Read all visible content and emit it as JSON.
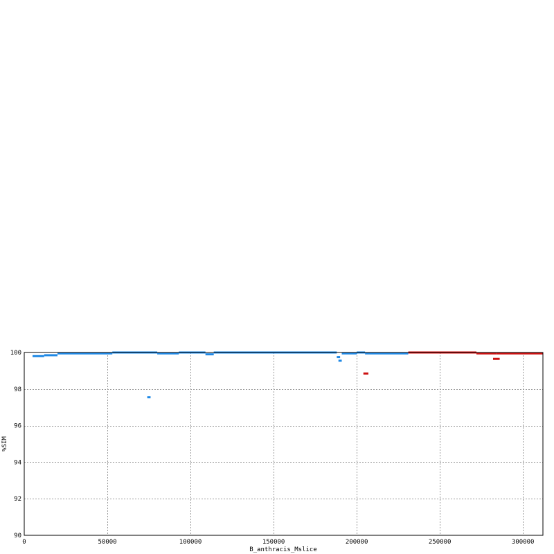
{
  "chart_data": {
    "type": "scatter",
    "title": "",
    "xlabel": "B_anthracis_Mslice",
    "ylabel": "%SIM",
    "xlim": [
      0,
      312000
    ],
    "ylim": [
      90,
      100
    ],
    "x_ticks": [
      0,
      50000,
      100000,
      150000,
      200000,
      250000,
      300000
    ],
    "x_tick_labels": [
      "0",
      "50000",
      "100000",
      "150000",
      "200000",
      "250000",
      "300000"
    ],
    "y_ticks": [
      90,
      92,
      94,
      96,
      98,
      100
    ],
    "y_tick_labels": [
      "90",
      "92",
      "94",
      "96",
      "98",
      "100"
    ],
    "grid": true,
    "grid_style": "dotted",
    "series": [
      {
        "color": "#1e88e5",
        "segments": [
          {
            "x0": 5000,
            "x1": 12000,
            "y": 99.8
          },
          {
            "x0": 12000,
            "x1": 20000,
            "y": 99.85
          },
          {
            "x0": 20000,
            "x1": 53000,
            "y": 99.95
          },
          {
            "x0": 53000,
            "x1": 80000,
            "y": 100.0
          },
          {
            "x0": 80000,
            "x1": 93000,
            "y": 99.95
          },
          {
            "x0": 93000,
            "x1": 109000,
            "y": 100.0
          },
          {
            "x0": 109000,
            "x1": 114000,
            "y": 99.9
          },
          {
            "x0": 114000,
            "x1": 188000,
            "y": 100.0
          },
          {
            "x0": 74000,
            "x1": 76000,
            "y": 97.55
          },
          {
            "x0": 188000,
            "x1": 190000,
            "y": 99.75
          },
          {
            "x0": 189000,
            "x1": 191000,
            "y": 99.55
          },
          {
            "x0": 191000,
            "x1": 200000,
            "y": 99.95
          },
          {
            "x0": 200000,
            "x1": 205000,
            "y": 100.0
          },
          {
            "x0": 205000,
            "x1": 231000,
            "y": 99.95
          }
        ]
      },
      {
        "color": "#cc1111",
        "segments": [
          {
            "x0": 231000,
            "x1": 272000,
            "y": 100.0
          },
          {
            "x0": 272000,
            "x1": 284000,
            "y": 99.95
          },
          {
            "x0": 284000,
            "x1": 312000,
            "y": 99.95
          },
          {
            "x0": 204000,
            "x1": 207000,
            "y": 98.85
          },
          {
            "x0": 282000,
            "x1": 286000,
            "y": 99.65
          }
        ]
      }
    ]
  }
}
